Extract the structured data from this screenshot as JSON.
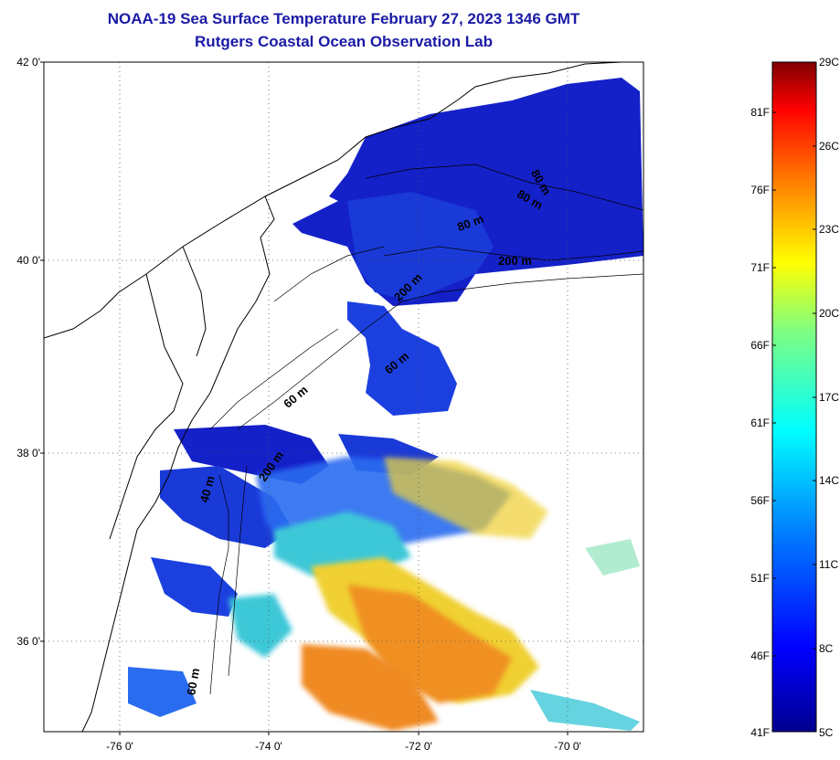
{
  "title": {
    "line1": "NOAA-19 Sea Surface Temperature February 27, 2023 1346 GMT",
    "line2": "Rutgers Coastal Ocean Observation Lab"
  },
  "axes": {
    "lat_labels": [
      "42 0'",
      "40 0'",
      "38 0'",
      "36 0'"
    ],
    "lon_labels": [
      "-76 0'",
      "-74 0'",
      "-72 0'",
      "-70 0'"
    ]
  },
  "contour_labels": [
    "80 m",
    "80 m",
    "80 m",
    "200 m",
    "200 m",
    "60 m",
    "200 m",
    "200 m",
    "60 m",
    "40 m",
    "60 m"
  ],
  "colorbar": {
    "f_labels": [
      "81F",
      "76F",
      "71F",
      "66F",
      "61F",
      "56F",
      "51F",
      "46F",
      "41F"
    ],
    "c_labels": [
      "29C",
      "26C",
      "23C",
      "20C",
      "17C",
      "14C",
      "11C",
      "8C",
      "5C"
    ],
    "colors": [
      "#7f0000",
      "#ff0000",
      "#ff8000",
      "#ffff00",
      "#80ff80",
      "#00ffff",
      "#0080ff",
      "#0000ff",
      "#00008f"
    ]
  },
  "colors": {
    "title": "#1a1aa6",
    "cold": "#1420c8",
    "cool": "#2a6cf0",
    "mid": "#3ec8d8",
    "warm": "#f0d030",
    "hot": "#f09020"
  }
}
